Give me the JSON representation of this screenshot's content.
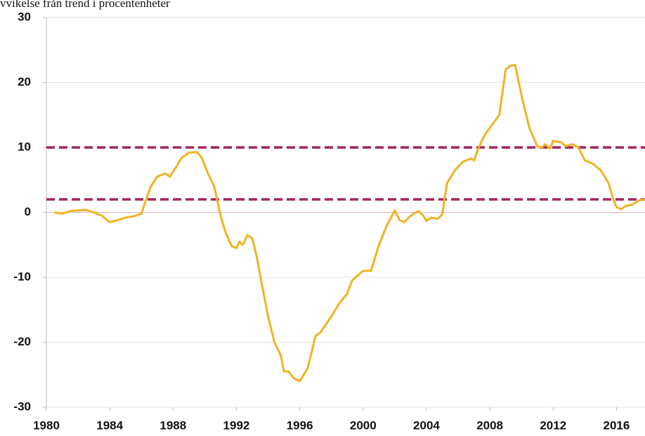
{
  "chart_data": {
    "type": "line",
    "title": "vvikelse från trend i procentenheter",
    "x": [
      1980.5,
      1981,
      1981.5,
      1982,
      1982.5,
      1983,
      1983.5,
      1984,
      1984.5,
      1985,
      1985.5,
      1986,
      1986.3,
      1986.6,
      1987,
      1987.5,
      1987.8,
      1988.2,
      1988.5,
      1989,
      1989.5,
      1989.8,
      1990.2,
      1990.6,
      1991,
      1991.3,
      1991.7,
      1992,
      1992.2,
      1992.4,
      1992.7,
      1993,
      1993.3,
      1993.6,
      1994,
      1994.4,
      1994.8,
      1995,
      1995.3,
      1995.6,
      1996,
      1996.5,
      1997,
      1997.3,
      1998,
      1998.5,
      1999,
      1999.3,
      2000,
      2000.5,
      2001,
      2001.5,
      2002,
      2002.3,
      2002.6,
      2003,
      2003.5,
      2003.8,
      2004,
      2004.3,
      2004.7,
      2005,
      2005.3,
      2005.8,
      2006.3,
      2006.8,
      2007,
      2007.3,
      2007.7,
      2008,
      2008.6,
      2009,
      2009.3,
      2009.6,
      2010,
      2010.5,
      2011,
      2011.3,
      2011.5,
      2011.8,
      2012,
      2012.5,
      2012.8,
      2013.2,
      2013.6,
      2014,
      2014.5,
      2015,
      2015.5,
      2015.8,
      2016,
      2016.3,
      2016.6,
      2017,
      2017.4,
      2017.8
    ],
    "series": [
      {
        "name": "Avvikelse",
        "color": "#f0b323",
        "values": [
          0,
          -0.2,
          0.2,
          0.3,
          0.4,
          0,
          -0.5,
          -1.5,
          -1.2,
          -0.8,
          -0.6,
          -0.2,
          2,
          4,
          5.5,
          6,
          5.5,
          7,
          8.3,
          9.2,
          9.3,
          8.5,
          6,
          4,
          -0.5,
          -3,
          -5.2,
          -5.5,
          -4.5,
          -5,
          -3.5,
          -4,
          -7,
          -11,
          -16,
          -20,
          -22,
          -24.5,
          -24.5,
          -25.5,
          -26,
          -24,
          -19,
          -18.5,
          -16,
          -14,
          -12.5,
          -10.5,
          -9,
          -9,
          -5,
          -2,
          0.3,
          -1.2,
          -1.5,
          -0.5,
          0.2,
          -0.5,
          -1.3,
          -0.8,
          -1,
          -0.3,
          4.5,
          6.5,
          7.8,
          8.3,
          8,
          10,
          12,
          13,
          15,
          22,
          22.6,
          22.7,
          18,
          13,
          10.2,
          10,
          10.5,
          9.8,
          11,
          10.8,
          10.2,
          10.5,
          10,
          8,
          7.5,
          6.5,
          4.5,
          2,
          0.8,
          0.5,
          1,
          1.2,
          1.8,
          2
        ]
      }
    ],
    "reference_lines": [
      {
        "value": 10,
        "color": "#a3245c"
      },
      {
        "value": 2,
        "color": "#a3245c"
      }
    ],
    "xlim": [
      1980,
      2017.8
    ],
    "xticks": [
      1980,
      1984,
      1988,
      1992,
      1996,
      2000,
      2004,
      2008,
      2012,
      2016
    ],
    "ylim": [
      -30,
      30
    ],
    "yticks": [
      -30,
      -20,
      -10,
      0,
      10,
      20,
      30
    ],
    "grid": true
  }
}
